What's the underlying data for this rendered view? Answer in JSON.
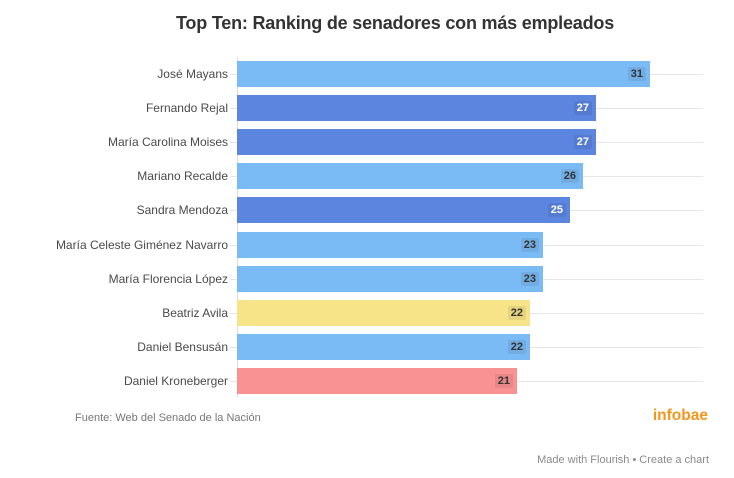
{
  "title": "Top Ten: Ranking de senadores con más empleados",
  "footer": {
    "source": "Fuente: Web del Senado de la Nación",
    "brand": "infobae"
  },
  "credit": {
    "made_with": "Made with Flourish",
    "separator": "•",
    "create_chart": "Create a chart"
  },
  "colors": {
    "light_blue": "#7ABBF5",
    "dark_blue": "#5C85E0",
    "yellow": "#F7E388",
    "red": "#F99292",
    "brand_orange": "#F7941E",
    "grid": "#E6E6E6",
    "axis": "#DCDCDC",
    "label_text": "#4A4A4A",
    "title_text": "#333333",
    "source_text": "#767676",
    "credit_text": "#8B8B8B"
  },
  "chart_data": {
    "type": "bar",
    "orientation": "horizontal",
    "title": "Top Ten: Ranking de senadores con más empleados",
    "categories": [
      "José Mayans",
      "Fernando Rejal",
      "María Carolina Moises",
      "Mariano Recalde",
      "Sandra Mendoza",
      "María Celeste Giménez Navarro",
      "María Florencia López",
      "Beatriz Avila",
      "Daniel Bensusán",
      "Daniel Kroneberger"
    ],
    "values": [
      31,
      27,
      27,
      26,
      25,
      23,
      23,
      22,
      22,
      21
    ],
    "bar_colors": [
      "light_blue",
      "dark_blue",
      "dark_blue",
      "light_blue",
      "dark_blue",
      "light_blue",
      "light_blue",
      "yellow",
      "light_blue",
      "red"
    ],
    "value_label_colors": [
      "#333333",
      "#FFFFFF",
      "#FFFFFF",
      "#333333",
      "#FFFFFF",
      "#333333",
      "#333333",
      "#333333",
      "#333333",
      "#333333"
    ],
    "xlabel": "",
    "ylabel": "",
    "xlim": [
      0,
      35
    ],
    "grid": true,
    "legend": "none",
    "value_labels": "inside-end"
  }
}
